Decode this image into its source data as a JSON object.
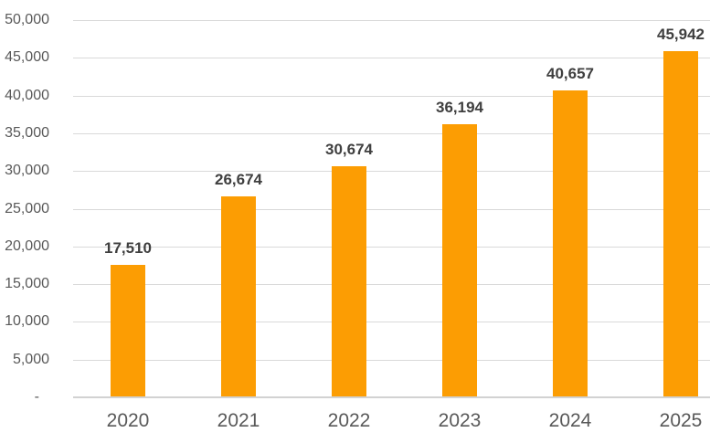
{
  "chart_data": {
    "type": "bar",
    "title": "",
    "xlabel": "",
    "ylabel": "",
    "categories": [
      "2020",
      "2021",
      "2022",
      "2023",
      "2024",
      "2025"
    ],
    "values": [
      17510,
      26674,
      30674,
      36194,
      40657,
      45942
    ],
    "value_labels": [
      "17,510",
      "26,674",
      "30,674",
      "36,194",
      "40,657",
      "45,942"
    ],
    "ylim": [
      0,
      50000
    ],
    "ytick_step": 5000,
    "ytick_labels": [
      "50,000",
      "45,000",
      "40,000",
      "35,000",
      "30,000",
      "25,000",
      "20,000",
      "15,000",
      "10,000",
      "5,000",
      "-"
    ],
    "grid": "horizontal",
    "legend_position": "none",
    "colors": {
      "bar": "#fc9d03",
      "gridline": "#d9d9d9",
      "axis_line": "#d2d2d2",
      "tick_text": "#595959",
      "value_label_text": "#3f3f3f"
    }
  }
}
